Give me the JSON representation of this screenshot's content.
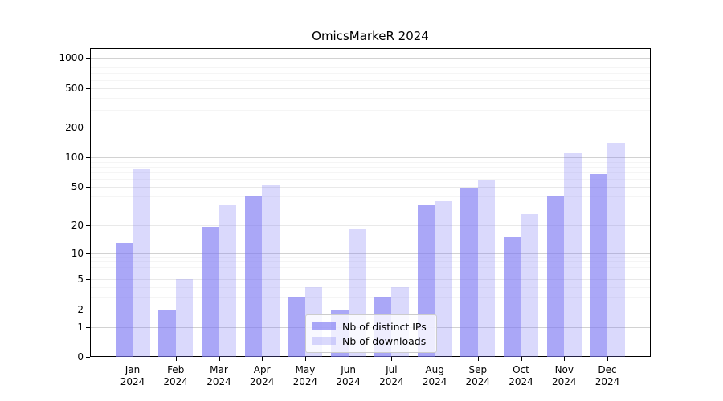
{
  "title": "OmicsMarkeR 2024",
  "colors": {
    "bar_ips": "rgba(122,117,243,0.64)",
    "bar_downloads": "rgba(122,117,243,0.28)",
    "grid_major": "#d2d2d2",
    "grid_mid": "#e9e9e9",
    "grid_minor": "#f5f5f5",
    "axis": "#000000"
  },
  "legend": {
    "items": [
      {
        "label": "Nb of distinct IPs",
        "color_key": "bar_ips"
      },
      {
        "label": "Nb of downloads",
        "color_key": "bar_downloads"
      }
    ]
  },
  "chart_data": {
    "type": "bar",
    "title": "OmicsMarkeR 2024",
    "categories": [
      "Jan 2024",
      "Feb 2024",
      "Mar 2024",
      "Apr 2024",
      "May 2024",
      "Jun 2024",
      "Jul 2024",
      "Aug 2024",
      "Sep 2024",
      "Oct 2024",
      "Nov 2024",
      "Dec 2024"
    ],
    "series": [
      {
        "name": "Nb of distinct IPs",
        "values": [
          13,
          2,
          19,
          40,
          3,
          2,
          3,
          32,
          48,
          15,
          40,
          67
        ]
      },
      {
        "name": "Nb of downloads",
        "values": [
          75,
          5,
          32,
          52,
          4,
          18,
          4,
          36,
          59,
          26,
          110,
          140
        ]
      }
    ],
    "xlabel": "",
    "ylabel": "",
    "yscale": "log1p",
    "ylim": [
      0,
      1250
    ],
    "y_ticks": [
      0,
      1,
      2,
      5,
      10,
      20,
      50,
      100,
      200,
      500,
      1000
    ],
    "y_minor_ticks": [
      3,
      4,
      6,
      7,
      8,
      9,
      30,
      40,
      60,
      70,
      80,
      90,
      300,
      400,
      600,
      700,
      800,
      900
    ],
    "grid": "horizontal",
    "legend_position": "lower-center"
  }
}
